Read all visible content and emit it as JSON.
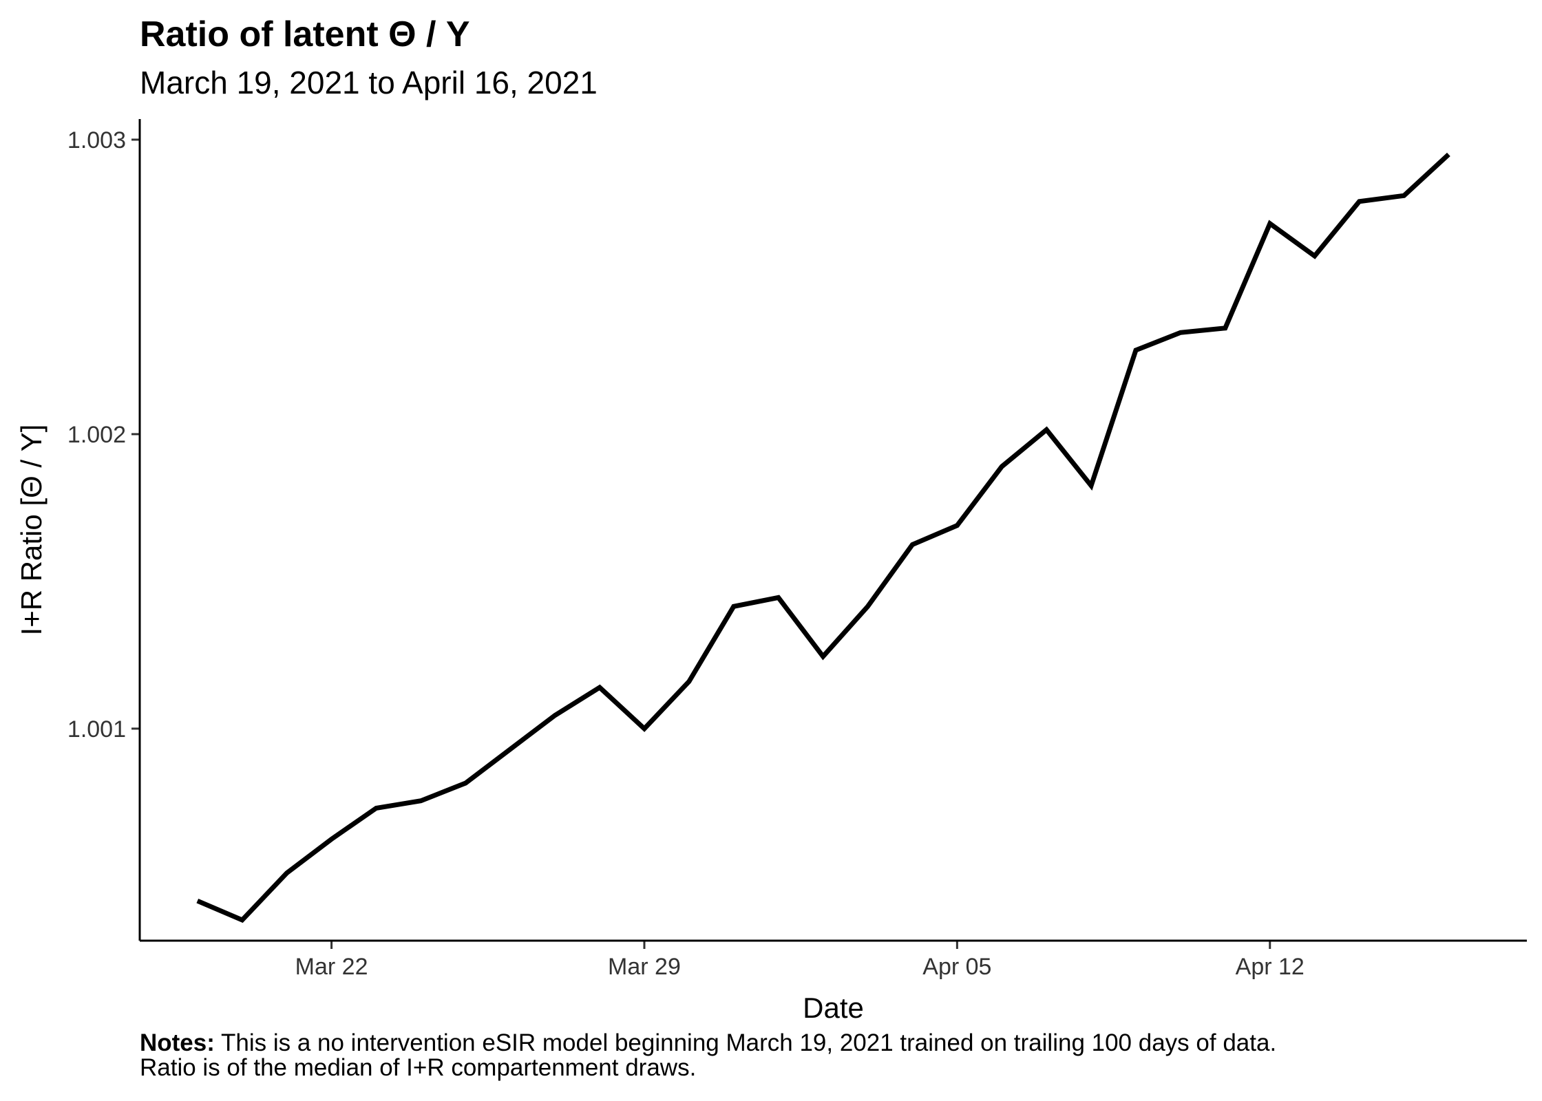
{
  "title": "Ratio of latent Θ / Y",
  "subtitle": "March 19, 2021 to April 16, 2021",
  "notes": {
    "label": "Notes:",
    "line1": " This is a no intervention eSIR model beginning March 19, 2021 trained on trailing 100 days of data.",
    "line2": "Ratio is of the median of I+R compartenment draws."
  },
  "chart_data": {
    "type": "line",
    "xlabel": "Date",
    "ylabel": "I+R Ratio [Θ / Y]",
    "line_color": "#000000",
    "grid": false,
    "x_axis": {
      "range": [
        "2021-03-17T17:00",
        "2021-04-17T18:00"
      ],
      "ticks": [
        {
          "date": "2021-03-22",
          "label": "Mar 22"
        },
        {
          "date": "2021-03-29",
          "label": "Mar 29"
        },
        {
          "date": "2021-04-05",
          "label": "Apr 05"
        },
        {
          "date": "2021-04-12",
          "label": "Apr 12"
        }
      ]
    },
    "y_axis": {
      "range": [
        1.00028,
        1.00307
      ],
      "ticks": [
        {
          "value": 1.001,
          "label": "1.001"
        },
        {
          "value": 1.002,
          "label": "1.002"
        },
        {
          "value": 1.003,
          "label": "1.003"
        }
      ]
    },
    "series": [
      {
        "x": [
          "2021-03-19",
          "2021-03-20",
          "2021-03-21",
          "2021-03-22",
          "2021-03-23",
          "2021-03-24",
          "2021-03-25",
          "2021-03-26",
          "2021-03-27",
          "2021-03-28",
          "2021-03-29",
          "2021-03-30",
          "2021-03-31",
          "2021-04-01",
          "2021-04-02",
          "2021-04-03",
          "2021-04-04",
          "2021-04-05",
          "2021-04-06",
          "2021-04-07",
          "2021-04-08",
          "2021-04-09",
          "2021-04-10",
          "2021-04-11",
          "2021-04-12",
          "2021-04-13",
          "2021-04-14",
          "2021-04-15",
          "2021-04-16"
        ],
        "y": [
          1.000415,
          1.00035,
          1.00051,
          1.000625,
          1.00073,
          1.000755,
          1.000815,
          1.00093,
          1.001045,
          1.00114,
          1.001,
          1.00116,
          1.001415,
          1.001445,
          1.001245,
          1.001415,
          1.001625,
          1.00169,
          1.00189,
          1.002015,
          1.001825,
          1.002285,
          1.002345,
          1.00236,
          1.002715,
          1.002605,
          1.00279,
          1.00281,
          1.00295
        ]
      }
    ]
  }
}
